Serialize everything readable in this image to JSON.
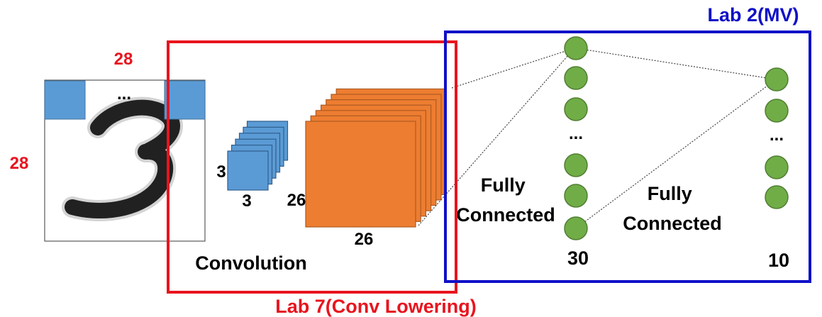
{
  "input": {
    "width_label": "28",
    "height_label": "28",
    "dots": "...",
    "digit": "3"
  },
  "kernel": {
    "side_label": "3",
    "bottom_label": "3"
  },
  "feature_map": {
    "side_label": "26",
    "bottom_label": "26"
  },
  "layers": {
    "conv_label": "Convolution",
    "fc1_label": [
      "Fully",
      "Connected"
    ],
    "fc2_label": [
      "Fully",
      "Connected"
    ],
    "hidden_size": "30",
    "output_size": "10",
    "hidden_dots": "...",
    "output_dots": "..."
  },
  "boxes": {
    "conv_box_label": "Lab 7(Conv Lowering)",
    "mv_box_label": "Lab 2(MV)"
  },
  "colors": {
    "red": "#e8141e",
    "blue": "#1010c8",
    "node_green": "#70ad47",
    "node_stroke": "#507e32",
    "kernel_blue": "#5b9bd5",
    "map_orange": "#ed7d31"
  }
}
